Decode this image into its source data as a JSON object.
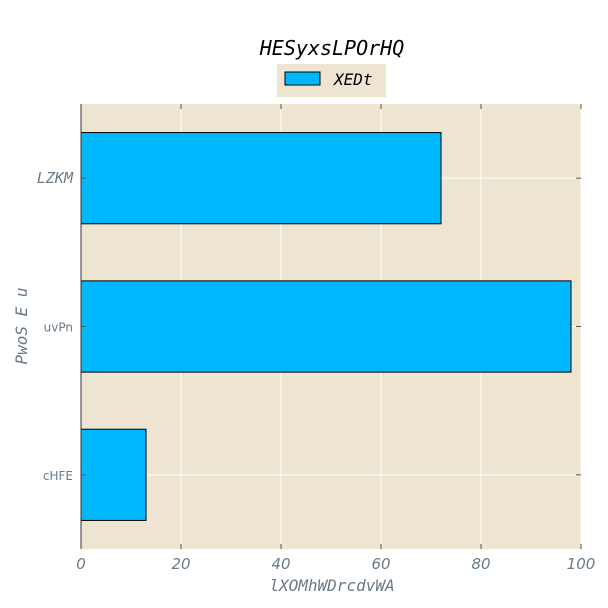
{
  "chart_data": {
    "type": "bar",
    "orientation": "horizontal",
    "title": "HESyxsLPOrHQ",
    "xlabel": "lXOMhWDrcdvWA",
    "ylabel": "PwoS E u",
    "categories": [
      "LZKM",
      "uvPn",
      "cHFE"
    ],
    "series": [
      {
        "name": "XEDt",
        "values": [
          72,
          98,
          13
        ]
      }
    ],
    "xlim": [
      0,
      100
    ],
    "xticks": [
      "0",
      "20",
      "40",
      "60",
      "80",
      "100"
    ],
    "grid": true,
    "legend_position": "top-center"
  },
  "colors": {
    "plot_background": "#ede5d2",
    "bar_fill": "#00b8ff",
    "bar_edge": "#000000",
    "grid": "#ffffff",
    "tick_label": "#6a7a86"
  }
}
